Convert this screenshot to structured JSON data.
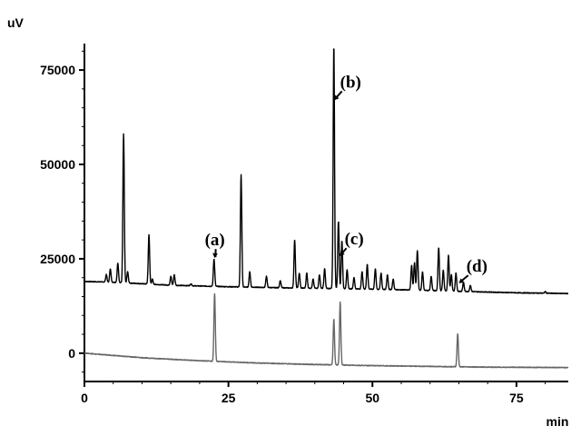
{
  "chart_data": {
    "type": "line",
    "title": "",
    "x_unit_label": "min",
    "y_unit_label": "uV",
    "xlim": [
      0,
      84
    ],
    "ylim": [
      -7500,
      82000
    ],
    "x_ticks": [
      0,
      25,
      50,
      75
    ],
    "x_tick_labels": [
      "0",
      "25",
      "50",
      "75"
    ],
    "y_ticks": [
      0,
      25000,
      50000,
      75000
    ],
    "y_tick_labels": [
      "0",
      "25000",
      "50000",
      "75000"
    ],
    "grid": false,
    "legend": "none",
    "series": [
      {
        "color": "#000000",
        "baseline_points": [
          [
            0,
            19000
          ],
          [
            5,
            18800
          ],
          [
            15,
            18000
          ],
          [
            25,
            17600
          ],
          [
            35,
            17300
          ],
          [
            45,
            17100
          ],
          [
            55,
            16800
          ],
          [
            65,
            16400
          ],
          [
            75,
            16000
          ],
          [
            84,
            15800
          ]
        ],
        "peaks": [
          [
            3.8,
            20800
          ],
          [
            4.5,
            22400
          ],
          [
            5.8,
            23800
          ],
          [
            6.8,
            58000
          ],
          [
            7.5,
            21600
          ],
          [
            11.2,
            31400
          ],
          [
            11.8,
            19600
          ],
          [
            15.0,
            20400
          ],
          [
            15.6,
            20800
          ],
          [
            18.5,
            18400
          ],
          [
            22.5,
            25000
          ],
          [
            27.2,
            47200
          ],
          [
            28.7,
            21600
          ],
          [
            31.6,
            20400
          ],
          [
            34.0,
            19200
          ],
          [
            36.5,
            30100
          ],
          [
            37.3,
            21200
          ],
          [
            38.6,
            21200
          ],
          [
            39.7,
            19600
          ],
          [
            40.8,
            20800
          ],
          [
            41.7,
            22400
          ],
          [
            43.3,
            81500
          ],
          [
            44.1,
            35000
          ],
          [
            44.7,
            29800
          ],
          [
            45.6,
            22000
          ],
          [
            46.8,
            20000
          ],
          [
            48.2,
            21600
          ],
          [
            49.1,
            23600
          ],
          [
            50.5,
            22400
          ],
          [
            51.5,
            21200
          ],
          [
            52.6,
            20800
          ],
          [
            53.6,
            19600
          ],
          [
            56.8,
            23200
          ],
          [
            57.3,
            24000
          ],
          [
            57.8,
            27200
          ],
          [
            58.7,
            21600
          ],
          [
            60.2,
            20400
          ],
          [
            61.5,
            28000
          ],
          [
            62.3,
            22000
          ],
          [
            63.2,
            26000
          ],
          [
            63.7,
            20800
          ],
          [
            64.5,
            21200
          ],
          [
            65.8,
            18800
          ],
          [
            67.0,
            18000
          ],
          [
            80.0,
            16300
          ]
        ]
      },
      {
        "color": "#666666",
        "baseline_points": [
          [
            0,
            0
          ],
          [
            10,
            -1200
          ],
          [
            20,
            -2000
          ],
          [
            30,
            -2600
          ],
          [
            40,
            -3000
          ],
          [
            50,
            -3300
          ],
          [
            60,
            -3500
          ],
          [
            70,
            -3700
          ],
          [
            84,
            -3800
          ]
        ],
        "peaks": [
          [
            22.6,
            15800
          ],
          [
            43.3,
            9000
          ],
          [
            44.4,
            13500
          ],
          [
            64.8,
            5200
          ]
        ]
      }
    ],
    "annotations": [
      {
        "label": "(a)",
        "x": 22.6,
        "y": 25200
      },
      {
        "label": "(b)",
        "x": 43.3,
        "y": 67000
      },
      {
        "label": "(c)",
        "x": 44.3,
        "y": 25700
      },
      {
        "label": "(d)",
        "x": 65.0,
        "y": 18500
      }
    ]
  }
}
